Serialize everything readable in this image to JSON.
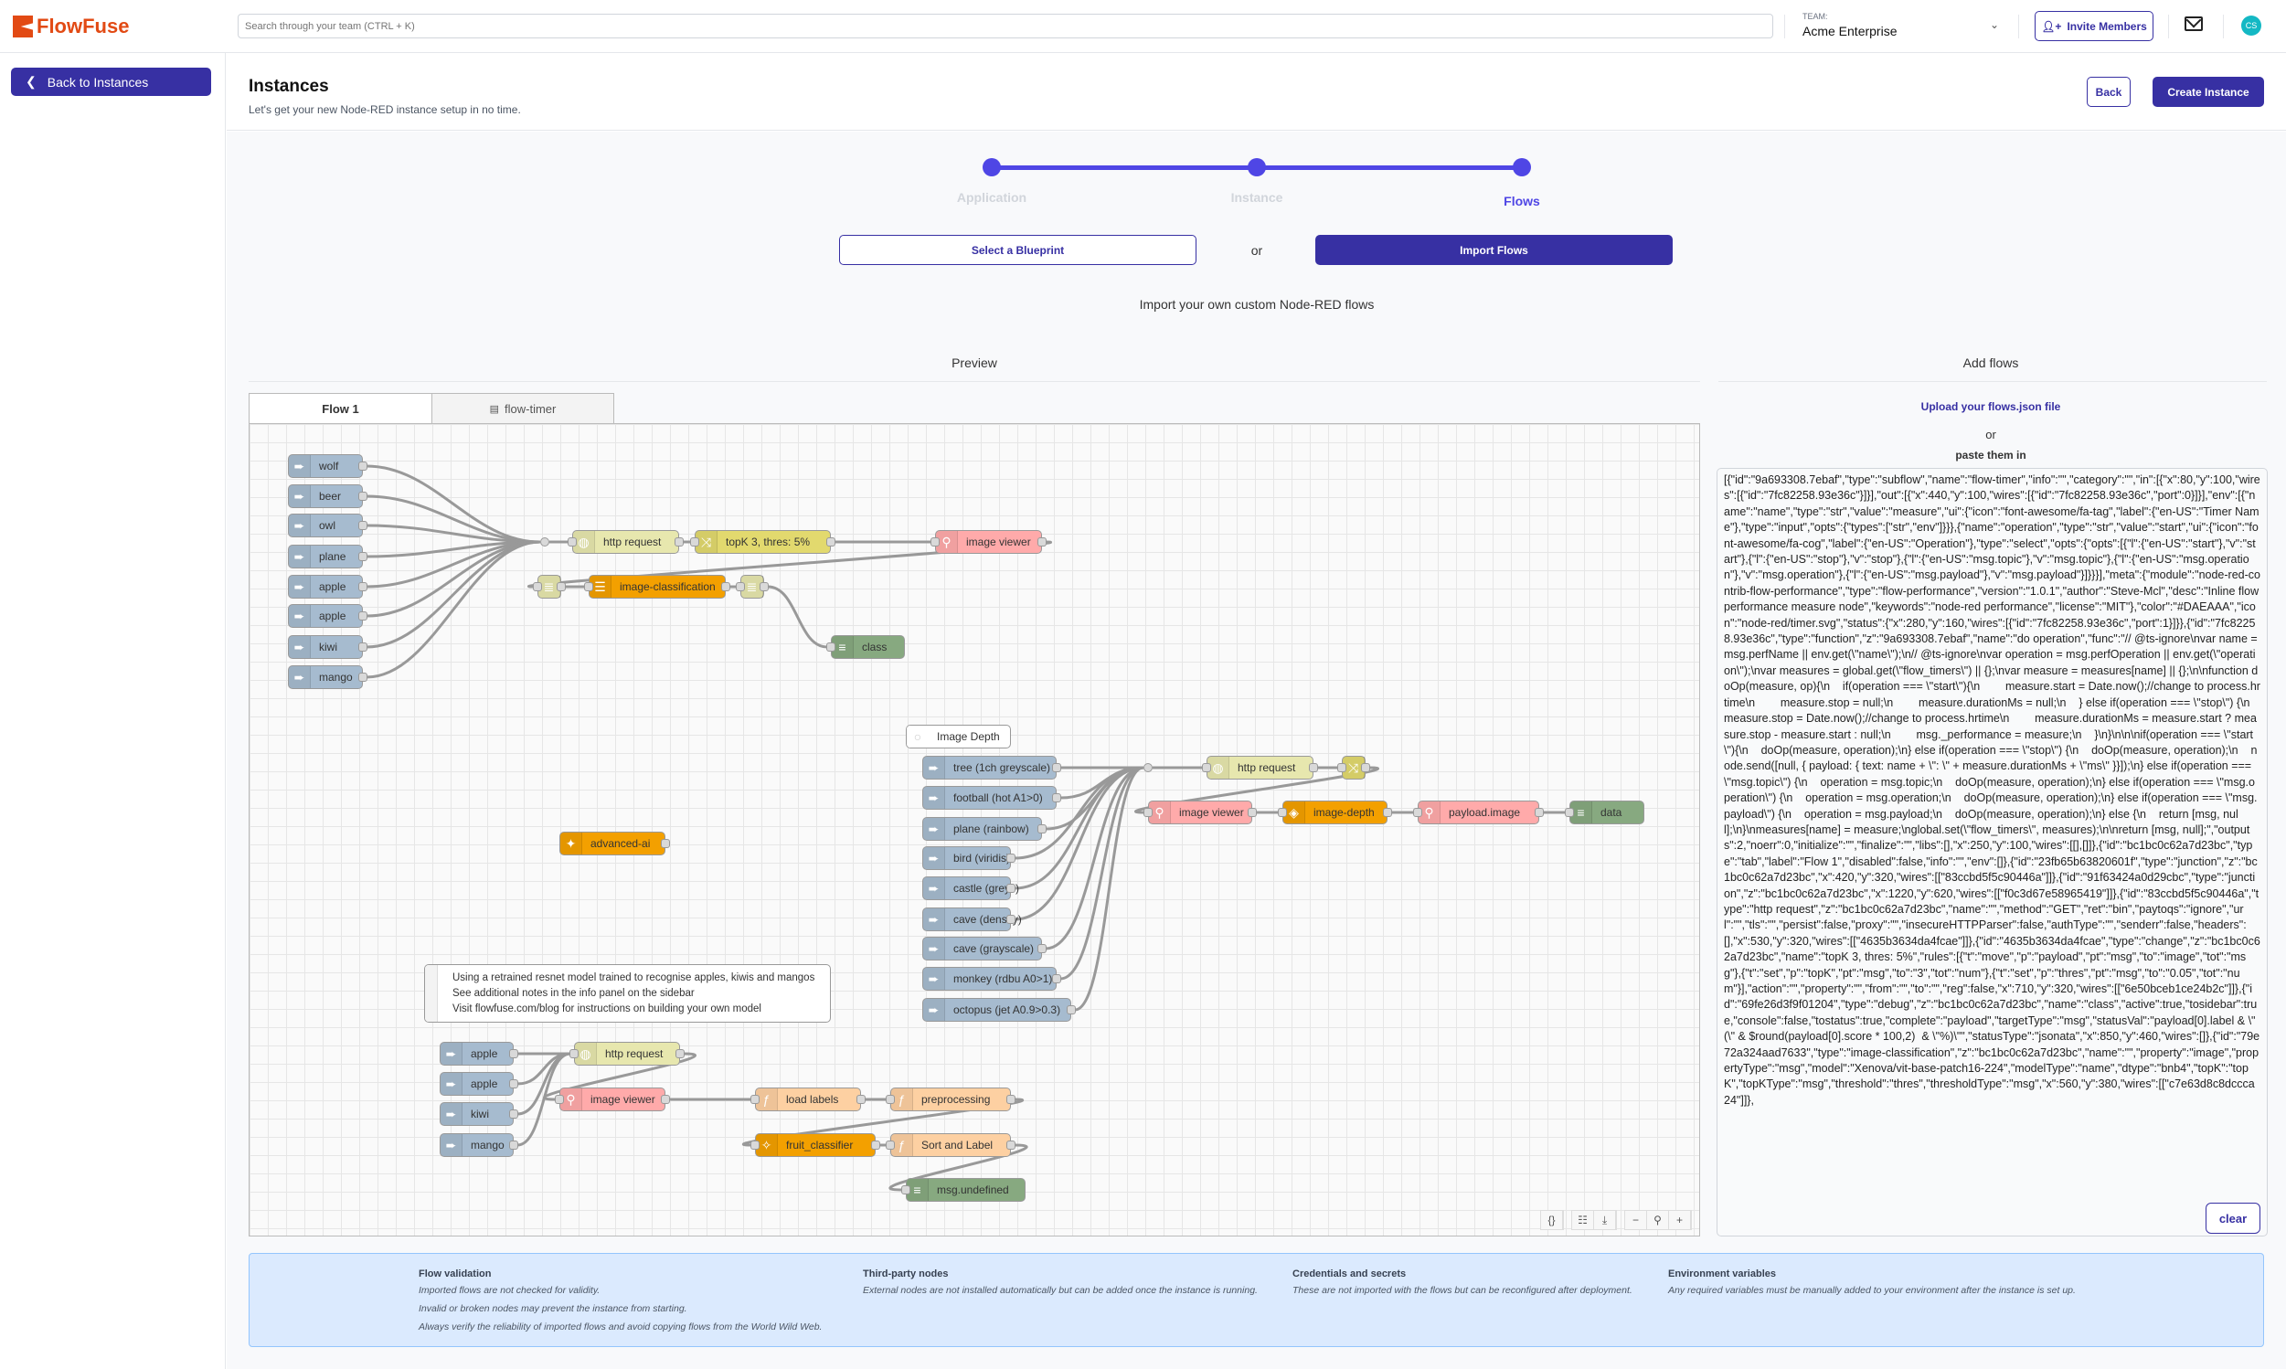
{
  "header": {
    "logo": "FlowFuse",
    "search_placeholder": "Search through your team (CTRL + K)",
    "team_label": "TEAM:",
    "team_name": "Acme Enterprise",
    "invite_label": "Invite Members",
    "avatar_initials": "CS"
  },
  "sidebar": {
    "back_label": "Back to Instances"
  },
  "page": {
    "title": "Instances",
    "subtitle": "Let's get your new Node-RED instance setup in no time.",
    "back_label": "Back",
    "create_label": "Create Instance"
  },
  "stepper": {
    "steps": [
      {
        "label": "Application",
        "state": "done"
      },
      {
        "label": "Instance",
        "state": "done"
      },
      {
        "label": "Flows",
        "state": "active"
      }
    ]
  },
  "choice": {
    "blueprint_label": "Select a Blueprint",
    "or": "or",
    "import_label": "Import Flows",
    "description": "Import your own custom Node-RED flows"
  },
  "preview": {
    "label": "Preview",
    "tabs": [
      {
        "label": "Flow 1",
        "active": true
      },
      {
        "label": "flow-timer",
        "active": false
      }
    ],
    "nodes": [
      {
        "id": "a1",
        "label": "wolf",
        "kind": "inject"
      },
      {
        "id": "a2",
        "label": "beer",
        "kind": "inject"
      },
      {
        "id": "a3",
        "label": "owl",
        "kind": "inject"
      },
      {
        "id": "a4",
        "label": "plane",
        "kind": "inject"
      },
      {
        "id": "a5",
        "label": "apple",
        "kind": "inject"
      },
      {
        "id": "a6",
        "label": "apple",
        "kind": "inject"
      },
      {
        "id": "a7",
        "label": "kiwi",
        "kind": "inject"
      },
      {
        "id": "a8",
        "label": "mango",
        "kind": "inject"
      },
      {
        "id": "jA",
        "label": "",
        "kind": "junction"
      },
      {
        "id": "httpA",
        "label": "http request",
        "kind": "http"
      },
      {
        "id": "topk",
        "label": "topK 3, thres: 5%",
        "kind": "change"
      },
      {
        "id": "ivA",
        "label": "image viewer",
        "kind": "viewer"
      },
      {
        "id": "jsonA1",
        "label": "",
        "kind": "json"
      },
      {
        "id": "ic",
        "label": "image-classification",
        "kind": "ai"
      },
      {
        "id": "jsonA2",
        "label": "",
        "kind": "json"
      },
      {
        "id": "classA",
        "label": "class",
        "kind": "debug"
      },
      {
        "id": "adv",
        "label": "advanced-ai",
        "kind": "ai-out"
      },
      {
        "id": "cmtB",
        "label": "Image Depth",
        "kind": "comment"
      },
      {
        "id": "b1",
        "label": "tree (1ch greyscale)",
        "kind": "inject"
      },
      {
        "id": "b2",
        "label": "football (hot A1>0)",
        "kind": "inject"
      },
      {
        "id": "b3",
        "label": "plane (rainbow)",
        "kind": "inject"
      },
      {
        "id": "b4",
        "label": "bird (viridis)",
        "kind": "inject"
      },
      {
        "id": "b5",
        "label": "castle (greys)",
        "kind": "inject"
      },
      {
        "id": "b6",
        "label": "cave (density)",
        "kind": "inject"
      },
      {
        "id": "b7",
        "label": "cave (grayscale)",
        "kind": "inject"
      },
      {
        "id": "b8",
        "label": "monkey (rdbu A0>1)",
        "kind": "inject"
      },
      {
        "id": "b9",
        "label": "octopus (jet A0.9>0.3)",
        "kind": "inject"
      },
      {
        "id": "jB",
        "label": "",
        "kind": "junction"
      },
      {
        "id": "httpB",
        "label": "http request",
        "kind": "http"
      },
      {
        "id": "chB",
        "label": "",
        "kind": "change"
      },
      {
        "id": "ivB",
        "label": "image viewer",
        "kind": "viewer"
      },
      {
        "id": "depth",
        "label": "image-depth",
        "kind": "ai-depth"
      },
      {
        "id": "pimg",
        "label": "payload.image",
        "kind": "viewer"
      },
      {
        "id": "dataB",
        "label": "data",
        "kind": "debug"
      },
      {
        "id": "c1",
        "label": "apple",
        "kind": "inject"
      },
      {
        "id": "c2",
        "label": "apple",
        "kind": "inject"
      },
      {
        "id": "c3",
        "label": "kiwi",
        "kind": "inject"
      },
      {
        "id": "c4",
        "label": "mango",
        "kind": "inject"
      },
      {
        "id": "httpC",
        "label": "http request",
        "kind": "http"
      },
      {
        "id": "ivC",
        "label": "image viewer",
        "kind": "viewer"
      },
      {
        "id": "load",
        "label": "load labels",
        "kind": "function"
      },
      {
        "id": "pre",
        "label": "preprocessing",
        "kind": "function"
      },
      {
        "id": "fruit",
        "label": "fruit_classifier",
        "kind": "ai-wand"
      },
      {
        "id": "sort",
        "label": "Sort and Label",
        "kind": "function"
      },
      {
        "id": "undef",
        "label": "msg.undefined",
        "kind": "debug"
      }
    ],
    "comment_lines": [
      "Using a retrained resnet model trained to recognise apples, kiwis and mangos",
      "See additional notes in the info panel on the sidebar",
      "Visit flowfuse.com/blog for instructions on building your own model"
    ],
    "wires": [
      [
        "a1",
        "jA"
      ],
      [
        "a2",
        "jA"
      ],
      [
        "a3",
        "jA"
      ],
      [
        "a4",
        "jA"
      ],
      [
        "a5",
        "jA"
      ],
      [
        "a6",
        "jA"
      ],
      [
        "a7",
        "jA"
      ],
      [
        "a8",
        "jA"
      ],
      [
        "jA",
        "httpA"
      ],
      [
        "httpA",
        "topk"
      ],
      [
        "topk",
        "ivA"
      ],
      [
        "ivA",
        "jsonA1"
      ],
      [
        "jsonA1",
        "ic"
      ],
      [
        "ic",
        "jsonA2"
      ],
      [
        "jsonA2",
        "classA"
      ],
      [
        "b1",
        "jB"
      ],
      [
        "b2",
        "jB"
      ],
      [
        "b3",
        "jB"
      ],
      [
        "b4",
        "jB"
      ],
      [
        "b5",
        "jB"
      ],
      [
        "b6",
        "jB"
      ],
      [
        "b7",
        "jB"
      ],
      [
        "b8",
        "jB"
      ],
      [
        "b9",
        "jB"
      ],
      [
        "jB",
        "httpB"
      ],
      [
        "httpB",
        "chB"
      ],
      [
        "chB",
        "ivB"
      ],
      [
        "ivB",
        "depth"
      ],
      [
        "depth",
        "pimg"
      ],
      [
        "pimg",
        "dataB"
      ],
      [
        "c1",
        "httpC"
      ],
      [
        "c2",
        "httpC"
      ],
      [
        "c3",
        "httpC"
      ],
      [
        "c4",
        "httpC"
      ],
      [
        "httpC",
        "ivC"
      ],
      [
        "ivC",
        "load"
      ],
      [
        "load",
        "pre"
      ],
      [
        "pre",
        "fruit"
      ],
      [
        "fruit",
        "sort"
      ],
      [
        "sort",
        "undef"
      ]
    ],
    "colors": {
      "inject": "#a6bbcf",
      "http": "#e7e7ae",
      "change": "#e2d96e",
      "viewer": "#ffaaaa",
      "json": "#e7e7ae",
      "ai": "#f3a000",
      "debug": "#87a980",
      "function": "#fdd0a2",
      "comment": "#ffffff"
    },
    "tools": [
      "braces-icon",
      "clipboard-icon",
      "download-icon",
      "zoom-out-icon",
      "zoom-reset-icon",
      "zoom-in-icon"
    ]
  },
  "add_flows": {
    "label": "Add flows",
    "upload_label": "Upload your flows.json file",
    "or": "or",
    "paste_label": "paste them in",
    "clear_label": "clear",
    "text": "[{\"id\":\"9a693308.7ebaf\",\"type\":\"subflow\",\"name\":\"flow-timer\",\"info\":\"\",\"category\":\"\",\"in\":[{\"x\":80,\"y\":100,\"wires\":[{\"id\":\"7fc82258.93e36c\"}]}],\"out\":[{\"x\":440,\"y\":100,\"wires\":[{\"id\":\"7fc82258.93e36c\",\"port\":0}]}],\"env\":[{\"name\":\"name\",\"type\":\"str\",\"value\":\"measure\",\"ui\":{\"icon\":\"font-awesome/fa-tag\",\"label\":{\"en-US\":\"Timer Name\"},\"type\":\"input\",\"opts\":{\"types\":[\"str\",\"env\"]}}},{\"name\":\"operation\",\"type\":\"str\",\"value\":\"start\",\"ui\":{\"icon\":\"font-awesome/fa-cog\",\"label\":{\"en-US\":\"Operation\"},\"type\":\"select\",\"opts\":{\"opts\":[{\"l\":{\"en-US\":\"start\"},\"v\":\"start\"},{\"l\":{\"en-US\":\"stop\"},\"v\":\"stop\"},{\"l\":{\"en-US\":\"msg.topic\"},\"v\":\"msg.topic\"},{\"l\":{\"en-US\":\"msg.operation\"},\"v\":\"msg.operation\"},{\"l\":{\"en-US\":\"msg.payload\"},\"v\":\"msg.payload\"}]}}}],\"meta\":{\"module\":\"node-red-contrib-flow-performance\",\"type\":\"flow-performance\",\"version\":\"1.0.1\",\"author\":\"Steve-Mcl\",\"desc\":\"Inline flow performance measure node\",\"keywords\":\"node-red performance\",\"license\":\"MIT\"},\"color\":\"#DAEAAA\",\"icon\":\"node-red/timer.svg\",\"status\":{\"x\":280,\"y\":160,\"wires\":[{\"id\":\"7fc82258.93e36c\",\"port\":1}]}},{\"id\":\"7fc82258.93e36c\",\"type\":\"function\",\"z\":\"9a693308.7ebaf\",\"name\":\"do operation\",\"func\":\"// @ts-ignore\\nvar name = msg.perfName || env.get(\\\"name\\\");\\n// @ts-ignore\\nvar operation = msg.perfOperation || env.get(\\\"operation\\\");\\nvar measures = global.get(\\\"flow_timers\\\") || {};\\nvar measure = measures[name] || {};\\n\\nfunction doOp(measure, op){\\n    if(operation === \\\"start\\\"){\\n        measure.start = Date.now();//change to process.hrtime\\n        measure.stop = null;\\n        measure.durationMs = null;\\n    } else if(operation === \\\"stop\\\") {\\n        measure.stop = Date.now();//change to process.hrtime\\n        measure.durationMs = measure.start ? measure.stop - measure.start : null;\\n        msg._performance = measure;\\n    }\\n}\\n\\n\\nif(operation === \\\"start\\\"){\\n    doOp(measure, operation);\\n} else if(operation === \\\"stop\\\") {\\n    doOp(measure, operation);\\n    node.send([null, { payload: { text: name + \\\": \\\" + measure.durationMs + \\\"ms\\\" }}]);\\n} else if(operation === \\\"msg.topic\\\") {\\n    operation = msg.topic;\\n    doOp(measure, operation);\\n} else if(operation === \\\"msg.operation\\\") {\\n    operation = msg.operation;\\n    doOp(measure, operation);\\n} else if(operation === \\\"msg.payload\\\") {\\n    operation = msg.payload;\\n    doOp(measure, operation);\\n} else {\\n    return [msg, null];\\n}\\nmeasures[name] = measure;\\nglobal.set(\\\"flow_timers\\\", measures);\\n\\nreturn [msg, null];\",\"outputs\":2,\"noerr\":0,\"initialize\":\"\",\"finalize\":\"\",\"libs\":[],\"x\":250,\"y\":100,\"wires\":[[],[]]},{\"id\":\"bc1bc0c62a7d23bc\",\"type\":\"tab\",\"label\":\"Flow 1\",\"disabled\":false,\"info\":\"\",\"env\":[]},{\"id\":\"23fb65b63820601f\",\"type\":\"junction\",\"z\":\"bc1bc0c62a7d23bc\",\"x\":420,\"y\":320,\"wires\":[[\"83ccbd5f5c90446a\"]]},{\"id\":\"91f63424a0d29cbc\",\"type\":\"junction\",\"z\":\"bc1bc0c62a7d23bc\",\"x\":1220,\"y\":620,\"wires\":[[\"f0c3d67e58965419\"]]},{\"id\":\"83ccbd5f5c90446a\",\"type\":\"http request\",\"z\":\"bc1bc0c62a7d23bc\",\"name\":\"\",\"method\":\"GET\",\"ret\":\"bin\",\"paytoqs\":\"ignore\",\"url\":\"\",\"tls\":\"\",\"persist\":false,\"proxy\":\"\",\"insecureHTTPParser\":false,\"authType\":\"\",\"senderr\":false,\"headers\":[],\"x\":530,\"y\":320,\"wires\":[[\"4635b3634da4fcae\"]]},{\"id\":\"4635b3634da4fcae\",\"type\":\"change\",\"z\":\"bc1bc0c62a7d23bc\",\"name\":\"topK 3, thres: 5%\",\"rules\":[{\"t\":\"move\",\"p\":\"payload\",\"pt\":\"msg\",\"to\":\"image\",\"tot\":\"msg\"},{\"t\":\"set\",\"p\":\"topK\",\"pt\":\"msg\",\"to\":\"3\",\"tot\":\"num\"},{\"t\":\"set\",\"p\":\"thres\",\"pt\":\"msg\",\"to\":\"0.05\",\"tot\":\"num\"}],\"action\":\"\",\"property\":\"\",\"from\":\"\",\"to\":\"\",\"reg\":false,\"x\":710,\"y\":320,\"wires\":[[\"6e50bceb1ce24b2c\"]]},{\"id\":\"69fe26d3f9f01204\",\"type\":\"debug\",\"z\":\"bc1bc0c62a7d23bc\",\"name\":\"class\",\"active\":true,\"tosidebar\":true,\"console\":false,\"tostatus\":true,\"complete\":\"payload\",\"targetType\":\"msg\",\"statusVal\":\"payload[0].label & \\\"(\\\" & $round(payload[0].score * 100,2)  & \\\"%)\\\"\",\"statusType\":\"jsonata\",\"x\":850,\"y\":460,\"wires\":[]},{\"id\":\"79e72a324aad7633\",\"type\":\"image-classification\",\"z\":\"bc1bc0c62a7d23bc\",\"name\":\"\",\"property\":\"image\",\"propertyType\":\"msg\",\"model\":\"Xenova/vit-base-patch16-224\",\"modelType\":\"name\",\"dtype\":\"bnb4\",\"topK\":\"topK\",\"topKType\":\"msg\",\"threshold\":\"thres\",\"thresholdType\":\"msg\",\"x\":560,\"y\":380,\"wires\":[[\"c7e63d8c8dccca24\"]]},"
  },
  "info_panel": {
    "columns": [
      {
        "title": "Flow validation",
        "lines": [
          "Imported flows are not checked for validity.",
          "Invalid or broken nodes may prevent the instance from starting.",
          "Always verify the reliability of imported flows and avoid copying flows from the World Wild Web."
        ]
      },
      {
        "title": "Third-party nodes",
        "lines": [
          "External nodes are not installed automatically but can be added once the instance is running."
        ]
      },
      {
        "title": "Credentials and secrets",
        "lines": [
          "These are not imported with the flows but can be reconfigured after deployment."
        ]
      },
      {
        "title": "Environment variables",
        "lines": [
          "Any required variables must be manually added to your environment after the instance is set up."
        ]
      }
    ]
  },
  "colors": {
    "brand": "#e24a14",
    "primary": "#3730a3",
    "step": "#4f46e5",
    "info_bg": "#dbeafe",
    "avatar": "#14b8c4"
  }
}
